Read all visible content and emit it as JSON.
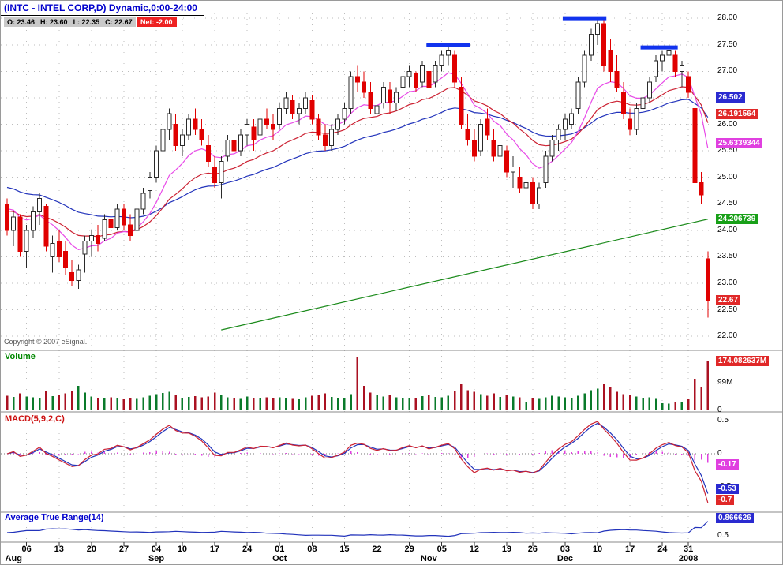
{
  "window": {
    "title": "(INTC - INTEL CORP,D) Dynamic,0:00-24:00"
  },
  "quote": {
    "o": "O: 23.46",
    "h": "H: 23.60",
    "l": "L: 22.35",
    "c": "C: 22.67",
    "net": "Net: -2.00"
  },
  "copyright": "Copyright © 2007 eSignal.",
  "panels": {
    "volume": {
      "label": "Volume",
      "ticks": [
        {
          "v": 99,
          "t": "99M"
        },
        {
          "v": 0,
          "t": "0"
        }
      ],
      "badge": {
        "t": "174.082637M",
        "v": 174.082637,
        "bg": "#e02828"
      }
    },
    "macd": {
      "label": "MACD(5,9,2,C)",
      "ticks": [
        {
          "v": 0.5,
          "t": "0.5"
        },
        {
          "v": 0,
          "t": "0"
        },
        {
          "v": -0.5,
          "t": "-0.5"
        }
      ],
      "badges": [
        {
          "t": "-0.17",
          "v": -0.17,
          "bg": "#e040e0"
        },
        {
          "t": "-0.53",
          "v": -0.53,
          "bg": "#2a2ad0"
        },
        {
          "t": "-0.7",
          "v": -0.7,
          "bg": "#e02828"
        }
      ]
    },
    "atr": {
      "label": "Average True Range(14)",
      "ticks": [
        {
          "v": 0.5,
          "t": "0.5"
        }
      ],
      "badge": {
        "t": "0.866626",
        "v": 0.866626,
        "bg": "#2a2ad0"
      }
    }
  },
  "price_axis": {
    "ticks": [
      {
        "v": 28.0,
        "t": "28.00"
      },
      {
        "v": 27.5,
        "t": "27.50"
      },
      {
        "v": 27.0,
        "t": "27.00"
      },
      {
        "v": 26.5,
        "t": "26.50"
      },
      {
        "v": 26.0,
        "t": "26.00"
      },
      {
        "v": 25.5,
        "t": "25.50"
      },
      {
        "v": 25.0,
        "t": "25.00"
      },
      {
        "v": 24.5,
        "t": "24.50"
      },
      {
        "v": 24.0,
        "t": "24.00"
      },
      {
        "v": 23.5,
        "t": "23.50"
      },
      {
        "v": 23.0,
        "t": "23.00"
      },
      {
        "v": 22.5,
        "t": "22.50"
      },
      {
        "v": 22.0,
        "t": "22.00"
      }
    ],
    "badges": [
      {
        "t": "26.502",
        "v": 26.502,
        "bg": "#2a2ad0"
      },
      {
        "t": "26.191564",
        "v": 26.191564,
        "bg": "#e02828"
      },
      {
        "t": "25.6339344",
        "v": 25.6339344,
        "bg": "#e040e0"
      },
      {
        "t": "24.206739",
        "v": 24.206739,
        "bg": "#18a018"
      },
      {
        "t": "22.67",
        "v": 22.67,
        "bg": "#e02828"
      }
    ]
  },
  "x_axis": {
    "ticks": [
      {
        "i": 3,
        "t": "06"
      },
      {
        "i": 8,
        "t": "13"
      },
      {
        "i": 13,
        "t": "20"
      },
      {
        "i": 18,
        "t": "27"
      },
      {
        "i": 23,
        "t": "04"
      },
      {
        "i": 27,
        "t": "10"
      },
      {
        "i": 32,
        "t": "17"
      },
      {
        "i": 37,
        "t": "24"
      },
      {
        "i": 42,
        "t": "01"
      },
      {
        "i": 47,
        "t": "08"
      },
      {
        "i": 52,
        "t": "15"
      },
      {
        "i": 57,
        "t": "22"
      },
      {
        "i": 62,
        "t": "29"
      },
      {
        "i": 67,
        "t": "05"
      },
      {
        "i": 72,
        "t": "12"
      },
      {
        "i": 77,
        "t": "19"
      },
      {
        "i": 81,
        "t": "26"
      },
      {
        "i": 86,
        "t": "03"
      },
      {
        "i": 91,
        "t": "10"
      },
      {
        "i": 96,
        "t": "17"
      },
      {
        "i": 101,
        "t": "24"
      },
      {
        "i": 105,
        "t": "31"
      }
    ],
    "months": [
      {
        "i": 1,
        "t": "Aug"
      },
      {
        "i": 23,
        "t": "Sep"
      },
      {
        "i": 42,
        "t": "Oct"
      },
      {
        "i": 65,
        "t": "Nov"
      },
      {
        "i": 86,
        "t": "Dec"
      },
      {
        "i": 105,
        "t": "2008"
      }
    ]
  },
  "chart_data": {
    "type": "candlestick",
    "symbol": "INTC",
    "interval": "D",
    "title": "(INTC - INTEL CORP,D) Dynamic,0:00-24:00",
    "price_ylim": [
      21.75,
      28.33
    ],
    "grid": "dotted",
    "candles": [
      [
        24.5,
        24.6,
        23.9,
        24.0
      ],
      [
        24.0,
        24.35,
        23.7,
        24.25
      ],
      [
        24.25,
        24.3,
        23.5,
        23.6
      ],
      [
        23.6,
        24.1,
        23.3,
        24.0
      ],
      [
        24.0,
        24.45,
        23.85,
        24.35
      ],
      [
        24.35,
        24.7,
        24.1,
        24.6
      ],
      [
        24.45,
        24.5,
        23.6,
        23.7
      ],
      [
        23.5,
        23.9,
        23.2,
        23.75
      ],
      [
        23.8,
        24.0,
        23.4,
        23.5
      ],
      [
        23.6,
        23.8,
        23.15,
        23.3
      ],
      [
        23.2,
        23.45,
        22.95,
        23.05
      ],
      [
        23.05,
        23.35,
        22.9,
        23.25
      ],
      [
        23.55,
        23.9,
        23.2,
        23.8
      ],
      [
        23.8,
        24.0,
        23.5,
        23.9
      ],
      [
        23.9,
        24.1,
        23.6,
        23.75
      ],
      [
        23.85,
        24.3,
        23.8,
        24.2
      ],
      [
        24.2,
        24.4,
        23.9,
        24.05
      ],
      [
        24.05,
        24.5,
        24.0,
        24.4
      ],
      [
        24.4,
        24.5,
        24.0,
        24.1
      ],
      [
        24.1,
        24.3,
        23.8,
        23.9
      ],
      [
        24.0,
        24.5,
        23.9,
        24.4
      ],
      [
        24.4,
        24.8,
        24.3,
        24.7
      ],
      [
        24.75,
        25.1,
        24.6,
        25.0
      ],
      [
        25.0,
        25.6,
        24.9,
        25.5
      ],
      [
        25.5,
        26.0,
        25.4,
        25.9
      ],
      [
        25.9,
        26.3,
        25.7,
        26.2
      ],
      [
        26.0,
        26.2,
        25.5,
        25.6
      ],
      [
        25.6,
        25.9,
        25.4,
        25.8
      ],
      [
        25.8,
        26.2,
        25.7,
        26.1
      ],
      [
        26.1,
        26.3,
        25.8,
        25.9
      ],
      [
        25.9,
        26.1,
        25.6,
        25.7
      ],
      [
        25.6,
        25.8,
        25.2,
        25.3
      ],
      [
        25.2,
        25.4,
        24.8,
        24.9
      ],
      [
        24.9,
        25.4,
        24.6,
        25.3
      ],
      [
        25.4,
        25.8,
        25.3,
        25.7
      ],
      [
        25.7,
        25.9,
        25.4,
        25.5
      ],
      [
        25.5,
        25.9,
        25.4,
        25.8
      ],
      [
        25.8,
        26.1,
        25.6,
        26.0
      ],
      [
        25.95,
        26.1,
        25.5,
        25.7
      ],
      [
        25.8,
        26.2,
        25.7,
        26.1
      ],
      [
        26.1,
        26.3,
        25.9,
        26.0
      ],
      [
        26.0,
        26.2,
        25.7,
        25.9
      ],
      [
        26.0,
        26.4,
        25.9,
        26.3
      ],
      [
        26.3,
        26.6,
        26.2,
        26.5
      ],
      [
        26.45,
        26.55,
        26.1,
        26.2
      ],
      [
        26.2,
        26.4,
        26.0,
        26.3
      ],
      [
        26.3,
        26.6,
        26.2,
        26.5
      ],
      [
        26.45,
        26.55,
        26.0,
        26.1
      ],
      [
        26.1,
        26.2,
        25.7,
        25.8
      ],
      [
        25.8,
        26.0,
        25.5,
        25.6
      ],
      [
        25.6,
        26.0,
        25.5,
        25.9
      ],
      [
        25.9,
        26.2,
        25.8,
        26.1
      ],
      [
        26.1,
        26.4,
        26.0,
        26.3
      ],
      [
        26.3,
        27.0,
        26.2,
        26.9
      ],
      [
        26.9,
        27.1,
        26.6,
        26.8
      ],
      [
        26.8,
        27.0,
        26.5,
        26.6
      ],
      [
        26.6,
        26.8,
        26.2,
        26.3
      ],
      [
        26.2,
        26.45,
        26.0,
        26.35
      ],
      [
        26.4,
        26.8,
        26.3,
        26.7
      ],
      [
        26.65,
        26.8,
        26.2,
        26.4
      ],
      [
        26.4,
        26.7,
        26.25,
        26.6
      ],
      [
        26.7,
        27.0,
        26.5,
        26.9
      ],
      [
        26.9,
        27.1,
        26.7,
        27.0
      ],
      [
        26.95,
        27.0,
        26.6,
        26.7
      ],
      [
        26.8,
        27.2,
        26.7,
        27.1
      ],
      [
        27.0,
        27.2,
        26.6,
        26.7
      ],
      [
        26.8,
        27.2,
        26.7,
        27.1
      ],
      [
        27.1,
        27.4,
        27.0,
        27.3
      ],
      [
        27.3,
        27.5,
        27.1,
        27.4
      ],
      [
        27.3,
        27.4,
        26.7,
        26.8
      ],
      [
        26.7,
        26.9,
        25.9,
        26.0
      ],
      [
        25.9,
        26.2,
        25.6,
        25.7
      ],
      [
        25.7,
        25.9,
        25.3,
        25.4
      ],
      [
        25.5,
        26.1,
        25.4,
        26.0
      ],
      [
        26.1,
        26.3,
        25.7,
        25.8
      ],
      [
        25.7,
        25.9,
        25.3,
        25.4
      ],
      [
        25.4,
        25.7,
        25.2,
        25.6
      ],
      [
        25.5,
        25.6,
        25.0,
        25.1
      ],
      [
        25.1,
        25.4,
        24.8,
        25.2
      ],
      [
        25.0,
        25.2,
        24.7,
        24.8
      ],
      [
        24.8,
        25.0,
        24.6,
        24.9
      ],
      [
        24.9,
        25.0,
        24.4,
        24.5
      ],
      [
        24.5,
        24.9,
        24.4,
        24.8
      ],
      [
        24.9,
        25.5,
        24.8,
        25.4
      ],
      [
        25.4,
        25.8,
        25.3,
        25.7
      ],
      [
        25.7,
        26.0,
        25.5,
        25.9
      ],
      [
        25.9,
        26.2,
        25.7,
        26.1
      ],
      [
        26.0,
        26.3,
        25.9,
        26.2
      ],
      [
        26.3,
        26.9,
        26.2,
        26.8
      ],
      [
        26.8,
        27.4,
        26.7,
        27.3
      ],
      [
        27.3,
        27.8,
        27.2,
        27.7
      ],
      [
        27.7,
        28.0,
        27.5,
        27.9
      ],
      [
        27.9,
        28.0,
        27.0,
        27.1
      ],
      [
        27.4,
        27.6,
        26.8,
        27.0
      ],
      [
        27.0,
        27.3,
        26.6,
        26.7
      ],
      [
        26.6,
        26.8,
        26.1,
        26.2
      ],
      [
        26.1,
        26.3,
        25.8,
        25.9
      ],
      [
        25.9,
        26.4,
        25.8,
        26.3
      ],
      [
        26.3,
        26.6,
        26.1,
        26.5
      ],
      [
        26.5,
        26.9,
        26.4,
        26.8
      ],
      [
        26.9,
        27.3,
        26.8,
        27.2
      ],
      [
        27.2,
        27.4,
        27.0,
        27.3
      ],
      [
        27.3,
        27.5,
        27.1,
        27.4
      ],
      [
        27.3,
        27.4,
        26.9,
        27.0
      ],
      [
        27.0,
        27.2,
        26.7,
        27.1
      ],
      [
        26.9,
        27.0,
        26.5,
        26.6
      ],
      [
        26.3,
        26.4,
        24.6,
        24.9
      ],
      [
        24.9,
        25.1,
        24.5,
        24.67
      ],
      [
        23.46,
        23.6,
        22.35,
        22.67
      ]
    ],
    "volumes_m": [
      52,
      48,
      61,
      50,
      46,
      44,
      67,
      51,
      57,
      60,
      71,
      87,
      64,
      49,
      45,
      43,
      47,
      42,
      39,
      44,
      41,
      46,
      52,
      58,
      62,
      66,
      54,
      43,
      48,
      51,
      46,
      49,
      63,
      57,
      47,
      44,
      41,
      49,
      45,
      42,
      46,
      44,
      47,
      44,
      41,
      39,
      46,
      52,
      57,
      61,
      48,
      44,
      43,
      58,
      190,
      88,
      64,
      57,
      49,
      54,
      47,
      45,
      42,
      44,
      51,
      54,
      48,
      46,
      52,
      68,
      95,
      72,
      66,
      58,
      52,
      61,
      48,
      57,
      49,
      46,
      28,
      44,
      41,
      47,
      52,
      49,
      46,
      43,
      52,
      61,
      72,
      78,
      94,
      81,
      66,
      58,
      54,
      49,
      44,
      46,
      41,
      26,
      24,
      31,
      28,
      39,
      112,
      85,
      174.082637
    ],
    "overlays": {
      "ema_fast": {
        "period": 10,
        "seed": 24.5,
        "color": "#e84ae8",
        "last_label": "25.6339344"
      },
      "ema_medium": {
        "period": 21,
        "seed": 24.4,
        "color": "#cc2233",
        "last_label": "26.191564"
      },
      "ema_slow": {
        "period": 40,
        "seed": 24.85,
        "color": "#2233bb",
        "last_label": "26.502"
      },
      "ma_long_approx": {
        "start_index": 33,
        "start_value": 22.12,
        "end_value": 24.21,
        "color": "#1a8a1a",
        "last_label": "24.206739"
      }
    },
    "indicators": {
      "volume": {
        "unit": "M",
        "ymax": 200,
        "last": 174.082637
      },
      "macd": {
        "params": "5,9,2,C",
        "fast": 5,
        "slow": 9,
        "signal": 2,
        "ylim": [
          -0.88,
          0.62
        ],
        "line_color": "#cc2233",
        "signal_color": "#2233bb",
        "hist_color": "#e040e0",
        "last_macd": -0.7,
        "last_signal": -0.53,
        "last_hist": -0.17
      },
      "atr": {
        "period": 14,
        "seed": 0.55,
        "ylim": [
          0.38,
          0.95
        ],
        "color": "#2233bb",
        "last": 0.866626
      }
    },
    "resistance_levels": [
      {
        "price": 27.5,
        "from_index": 65,
        "to_index": 71
      },
      {
        "price": 28.0,
        "from_index": 86,
        "to_index": 92
      },
      {
        "price": 27.45,
        "from_index": 98,
        "to_index": 103
      }
    ],
    "resistance_color": "#1133ee",
    "volume_colors": {
      "up": "#0a7a2a",
      "down": "#aa1122"
    },
    "candle_colors": {
      "up_fill": "#ffffff",
      "up_stroke": "#2a2a2a",
      "down": "#e00000"
    }
  }
}
